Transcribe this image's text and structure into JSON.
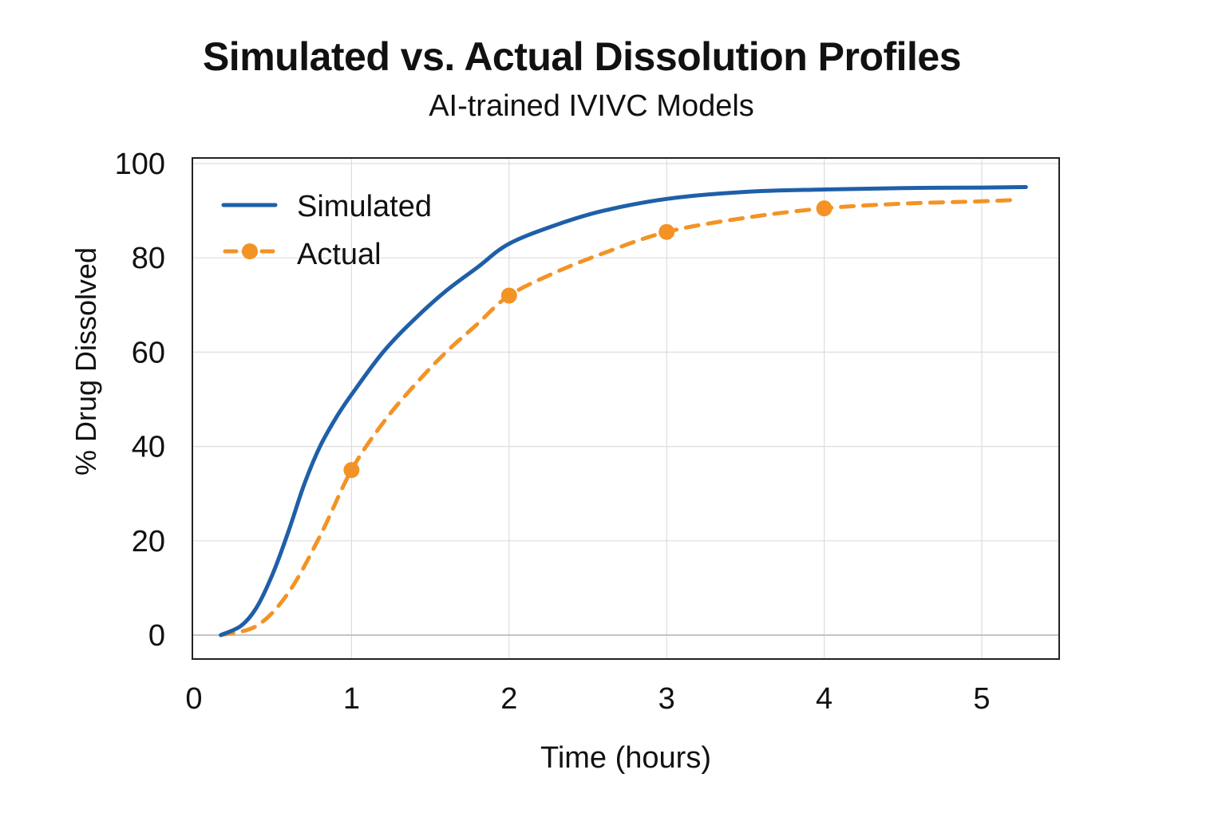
{
  "chart_data": {
    "type": "line",
    "title": "Simulated vs. Actual Dissolution Profiles",
    "subtitle": "AI-trained IVIVC Models",
    "xlabel": "Time (hours)",
    "ylabel": "% Drug Dissolved",
    "xlim": [
      0,
      5.5
    ],
    "ylim": [
      -5,
      100
    ],
    "xticks": [
      0,
      1,
      2,
      3,
      4,
      5
    ],
    "yticks": [
      0,
      20,
      40,
      60,
      80,
      100
    ],
    "grid": true,
    "legend_position": "top-left",
    "series": [
      {
        "name": "Simulated",
        "color": "#1f5fa8",
        "style": "solid",
        "markers": false,
        "x": [
          0.17,
          0.3,
          0.4,
          0.5,
          0.6,
          0.7,
          0.8,
          0.9,
          1.0,
          1.2,
          1.4,
          1.6,
          1.8,
          2.0,
          2.3,
          2.6,
          3.0,
          3.5,
          4.0,
          4.5,
          5.0,
          5.28
        ],
        "y": [
          0,
          2,
          6,
          13,
          22,
          32,
          40,
          46,
          51,
          60,
          67,
          73,
          78,
          83,
          87,
          90,
          92.5,
          94,
          94.5,
          94.8,
          94.9,
          95
        ]
      },
      {
        "name": "Actual",
        "color": "#f39325",
        "style": "dashed",
        "markers": true,
        "marker_x": [
          1,
          2,
          3,
          4
        ],
        "x": [
          0.17,
          0.4,
          0.6,
          0.8,
          1.0,
          1.2,
          1.4,
          1.6,
          1.8,
          2.0,
          2.3,
          2.6,
          3.0,
          3.5,
          4.0,
          4.5,
          5.0,
          5.22
        ],
        "y": [
          0,
          2,
          9,
          21,
          35,
          45,
          53,
          60,
          66,
          72,
          77,
          81,
          85.5,
          88.5,
          90.5,
          91.5,
          92,
          92.3
        ]
      }
    ]
  }
}
